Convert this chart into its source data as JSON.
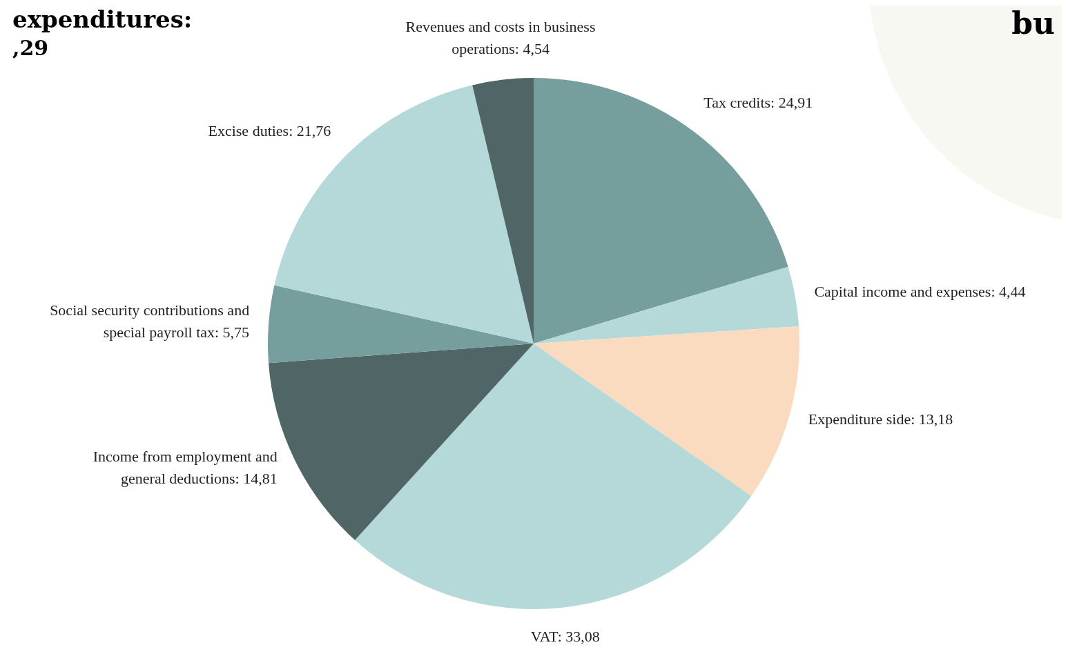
{
  "chart_data": {
    "type": "pie",
    "categories": [
      "Tax credits",
      "Capital income and expenses",
      "Expenditure side",
      "VAT",
      "Income from employment and general deductions",
      "Social security contributions and special payroll tax",
      "Excise duties",
      "Revenues and costs in business operations"
    ],
    "values": [
      24.91,
      4.44,
      13.18,
      33.08,
      14.81,
      5.75,
      21.76,
      4.54
    ],
    "value_labels": [
      "24,91",
      "4,44",
      "13,18",
      "33,08",
      "14,81",
      "5,75",
      "21,76",
      "4,54"
    ],
    "colors": [
      "#769e9d",
      "#b5d9d8",
      "#fadbc0",
      "#b5d9d8",
      "#4f6566",
      "#769e9d",
      "#b5d9d8",
      "#4f6566"
    ],
    "legend": false,
    "annotations": [
      "expenditures:",
      ",29",
      "bu"
    ]
  }
}
